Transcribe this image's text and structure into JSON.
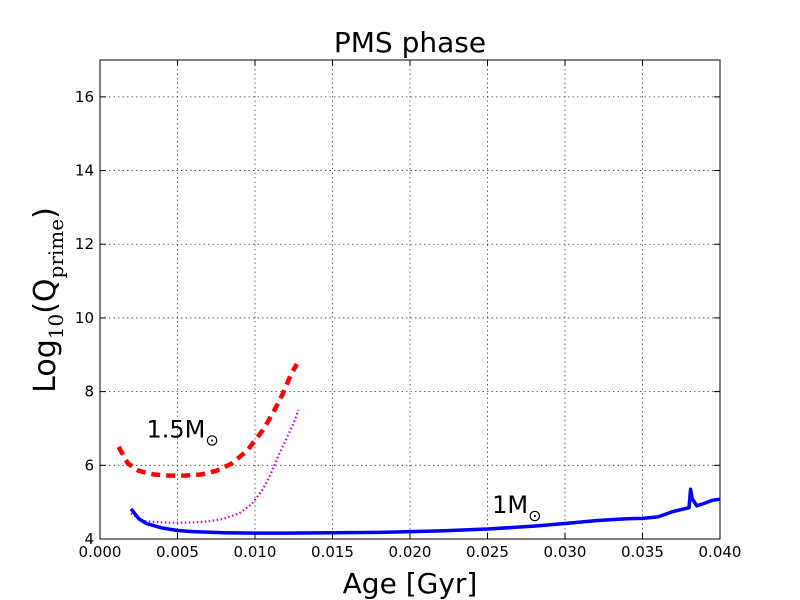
{
  "chart_data": {
    "type": "line",
    "title": "PMS phase",
    "xlabel": "Age [Gyr]",
    "ylabel": {
      "prefix": "Log",
      "prefix_sub": "10",
      "open": "(Q",
      "var_sub": "prime",
      "close": ")"
    },
    "xlim": [
      0.0,
      0.04
    ],
    "ylim": [
      4,
      17
    ],
    "xticks": [
      "0.000",
      "0.005",
      "0.010",
      "0.015",
      "0.020",
      "0.025",
      "0.030",
      "0.035",
      "0.040"
    ],
    "yticks": [
      "4",
      "6",
      "8",
      "10",
      "12",
      "14",
      "16"
    ],
    "grid": true,
    "annotations": [
      {
        "text": "1.5M",
        "symbol": "⊙",
        "x": 0.003,
        "y": 6.75
      },
      {
        "text": "1M",
        "symbol": "⊙",
        "x": 0.0253,
        "y": 4.7
      }
    ],
    "series": [
      {
        "color": "#ff0000",
        "style": "dashed",
        "x": [
          0.0012,
          0.0018,
          0.0025,
          0.0035,
          0.0045,
          0.0055,
          0.0065,
          0.0075,
          0.0085,
          0.0095,
          0.0105,
          0.0112,
          0.0118,
          0.0123,
          0.0127
        ],
        "y": [
          6.5,
          6.05,
          5.85,
          5.75,
          5.72,
          5.72,
          5.75,
          5.85,
          6.05,
          6.4,
          6.95,
          7.45,
          7.95,
          8.45,
          8.75
        ]
      },
      {
        "color": "#cc00cc",
        "style": "dotted",
        "x": [
          0.002,
          0.0025,
          0.003,
          0.004,
          0.005,
          0.006,
          0.007,
          0.008,
          0.009,
          0.0098,
          0.0105,
          0.011,
          0.0115,
          0.012,
          0.0125,
          0.0128
        ],
        "y": [
          4.7,
          4.55,
          4.48,
          4.45,
          4.44,
          4.45,
          4.48,
          4.55,
          4.7,
          4.95,
          5.35,
          5.75,
          6.25,
          6.7,
          7.15,
          7.5
        ]
      },
      {
        "color": "#0000ff",
        "style": "solid",
        "x": [
          0.002,
          0.0025,
          0.003,
          0.004,
          0.005,
          0.006,
          0.008,
          0.01,
          0.012,
          0.015,
          0.018,
          0.02,
          0.022,
          0.025,
          0.028,
          0.03,
          0.032,
          0.034,
          0.035,
          0.036,
          0.037,
          0.0375,
          0.038,
          0.0381,
          0.0382,
          0.0385,
          0.039,
          0.0395,
          0.04
        ],
        "y": [
          4.82,
          4.55,
          4.42,
          4.3,
          4.23,
          4.2,
          4.17,
          4.16,
          4.16,
          4.17,
          4.18,
          4.2,
          4.22,
          4.27,
          4.35,
          4.42,
          4.5,
          4.55,
          4.56,
          4.6,
          4.75,
          4.8,
          4.85,
          5.35,
          5.1,
          4.9,
          4.97,
          5.05,
          5.08
        ]
      }
    ]
  }
}
